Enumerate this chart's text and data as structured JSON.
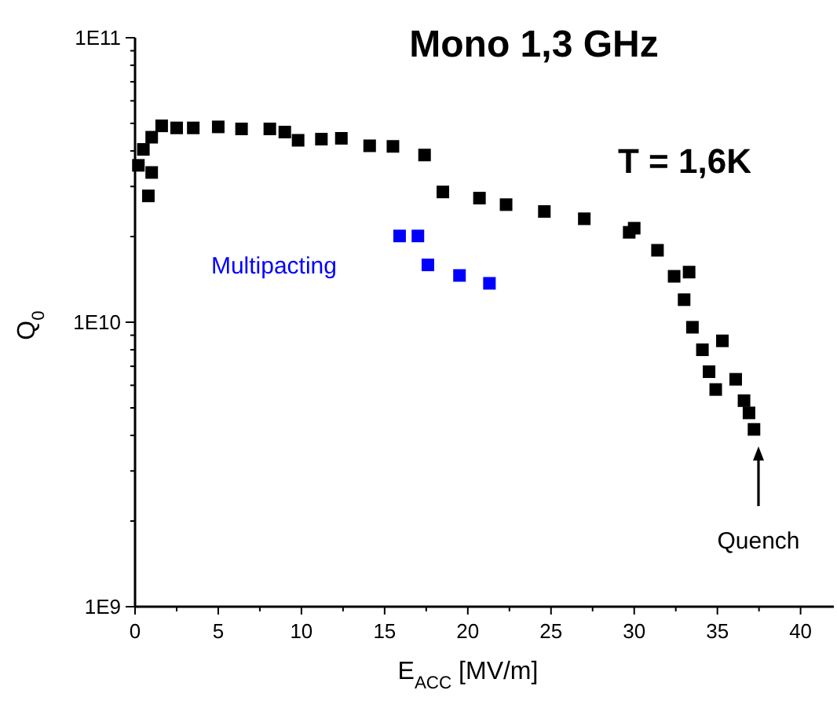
{
  "chart_data": {
    "type": "scatter",
    "title": "Mono 1,3 GHz",
    "xlabel": "E$_{ACC}$ [MV/m]",
    "ylabel": "Q$_{0}$",
    "log": "y",
    "marker": "square",
    "grid": false,
    "xlim": [
      0,
      42
    ],
    "ylim": [
      1000000000.0,
      100000000000.0
    ],
    "xticks": [
      0,
      {
        "value": 2.5,
        "label": null
      },
      5,
      {
        "value": 7.5,
        "label": null
      },
      10,
      {
        "value": 12.5,
        "label": null
      },
      15,
      {
        "value": 17.5,
        "label": null
      },
      20,
      {
        "value": 22.5,
        "label": null
      },
      25,
      {
        "value": 27.5,
        "label": null
      },
      30,
      {
        "value": 32.5,
        "label": null
      },
      35,
      {
        "value": 37.5,
        "label": null
      },
      40
    ],
    "yticks": [
      {
        "value": 1000000000.0,
        "label": "1E9"
      },
      {
        "value": 2000000000.0,
        "label": null
      },
      {
        "value": 3000000000.0,
        "label": null
      },
      {
        "value": 4000000000.0,
        "label": null
      },
      {
        "value": 5000000000.0,
        "label": null
      },
      {
        "value": 6000000000.0,
        "label": null
      },
      {
        "value": 7000000000.0,
        "label": null
      },
      {
        "value": 8000000000.0,
        "label": null
      },
      {
        "value": 9000000000.0,
        "label": null
      },
      {
        "value": 10000000000.0,
        "label": "1E10"
      },
      {
        "value": 20000000000.0,
        "label": null
      },
      {
        "value": 30000000000.0,
        "label": null
      },
      {
        "value": 40000000000.0,
        "label": null
      },
      {
        "value": 50000000000.0,
        "label": null
      },
      {
        "value": 60000000000.0,
        "label": null
      },
      {
        "value": 70000000000.0,
        "label": null
      },
      {
        "value": 80000000000.0,
        "label": null
      },
      {
        "value": 90000000000.0,
        "label": null
      },
      {
        "value": 100000000000.0,
        "label": "1E11"
      }
    ],
    "series": [
      {
        "color": "#000000",
        "x": [
          0.2,
          0.5,
          1.0,
          1.0,
          0.8,
          1.6,
          2.5,
          3.5,
          5.0,
          6.4,
          8.1,
          9.0,
          9.8,
          11.2,
          12.4,
          14.1,
          15.5,
          17.4,
          18.5,
          20.7,
          22.3,
          24.6,
          27.0,
          29.7,
          30.0,
          31.4,
          32.4,
          33.3,
          33.0,
          33.5,
          34.1,
          35.3,
          34.5,
          34.9,
          36.1,
          36.6,
          36.9,
          37.2
        ],
        "values": [
          35600000000.0,
          40500000000.0,
          44700000000.0,
          33600000000.0,
          27800000000.0,
          49000000000.0,
          48200000000.0,
          48200000000.0,
          48600000000.0,
          47800000000.0,
          47800000000.0,
          46600000000.0,
          43600000000.0,
          44000000000.0,
          44300000000.0,
          41700000000.0,
          41500000000.0,
          38700000000.0,
          28700000000.0,
          27300000000.0,
          25900000000.0,
          24500000000.0,
          23100000000.0,
          20700000000.0,
          21400000000.0,
          17900000000.0,
          14500000000.0,
          15000000000.0,
          12000000000.0,
          9600000000.0,
          8000000000.0,
          8600000000.0,
          6700000000.0,
          5800000000.0,
          6300000000.0,
          5300000000.0,
          4800000000.0,
          4200000000.0
        ]
      },
      {
        "name": "Multipacting",
        "color": "#0000ff",
        "x": [
          15.9,
          17.0,
          17.6,
          19.5,
          21.3
        ],
        "values": [
          20100000000.0,
          20100000000.0,
          15900000000.0,
          14600000000.0,
          13700000000.0
        ]
      }
    ],
    "annotations": [
      "T = 1,6K",
      "Quench"
    ]
  }
}
